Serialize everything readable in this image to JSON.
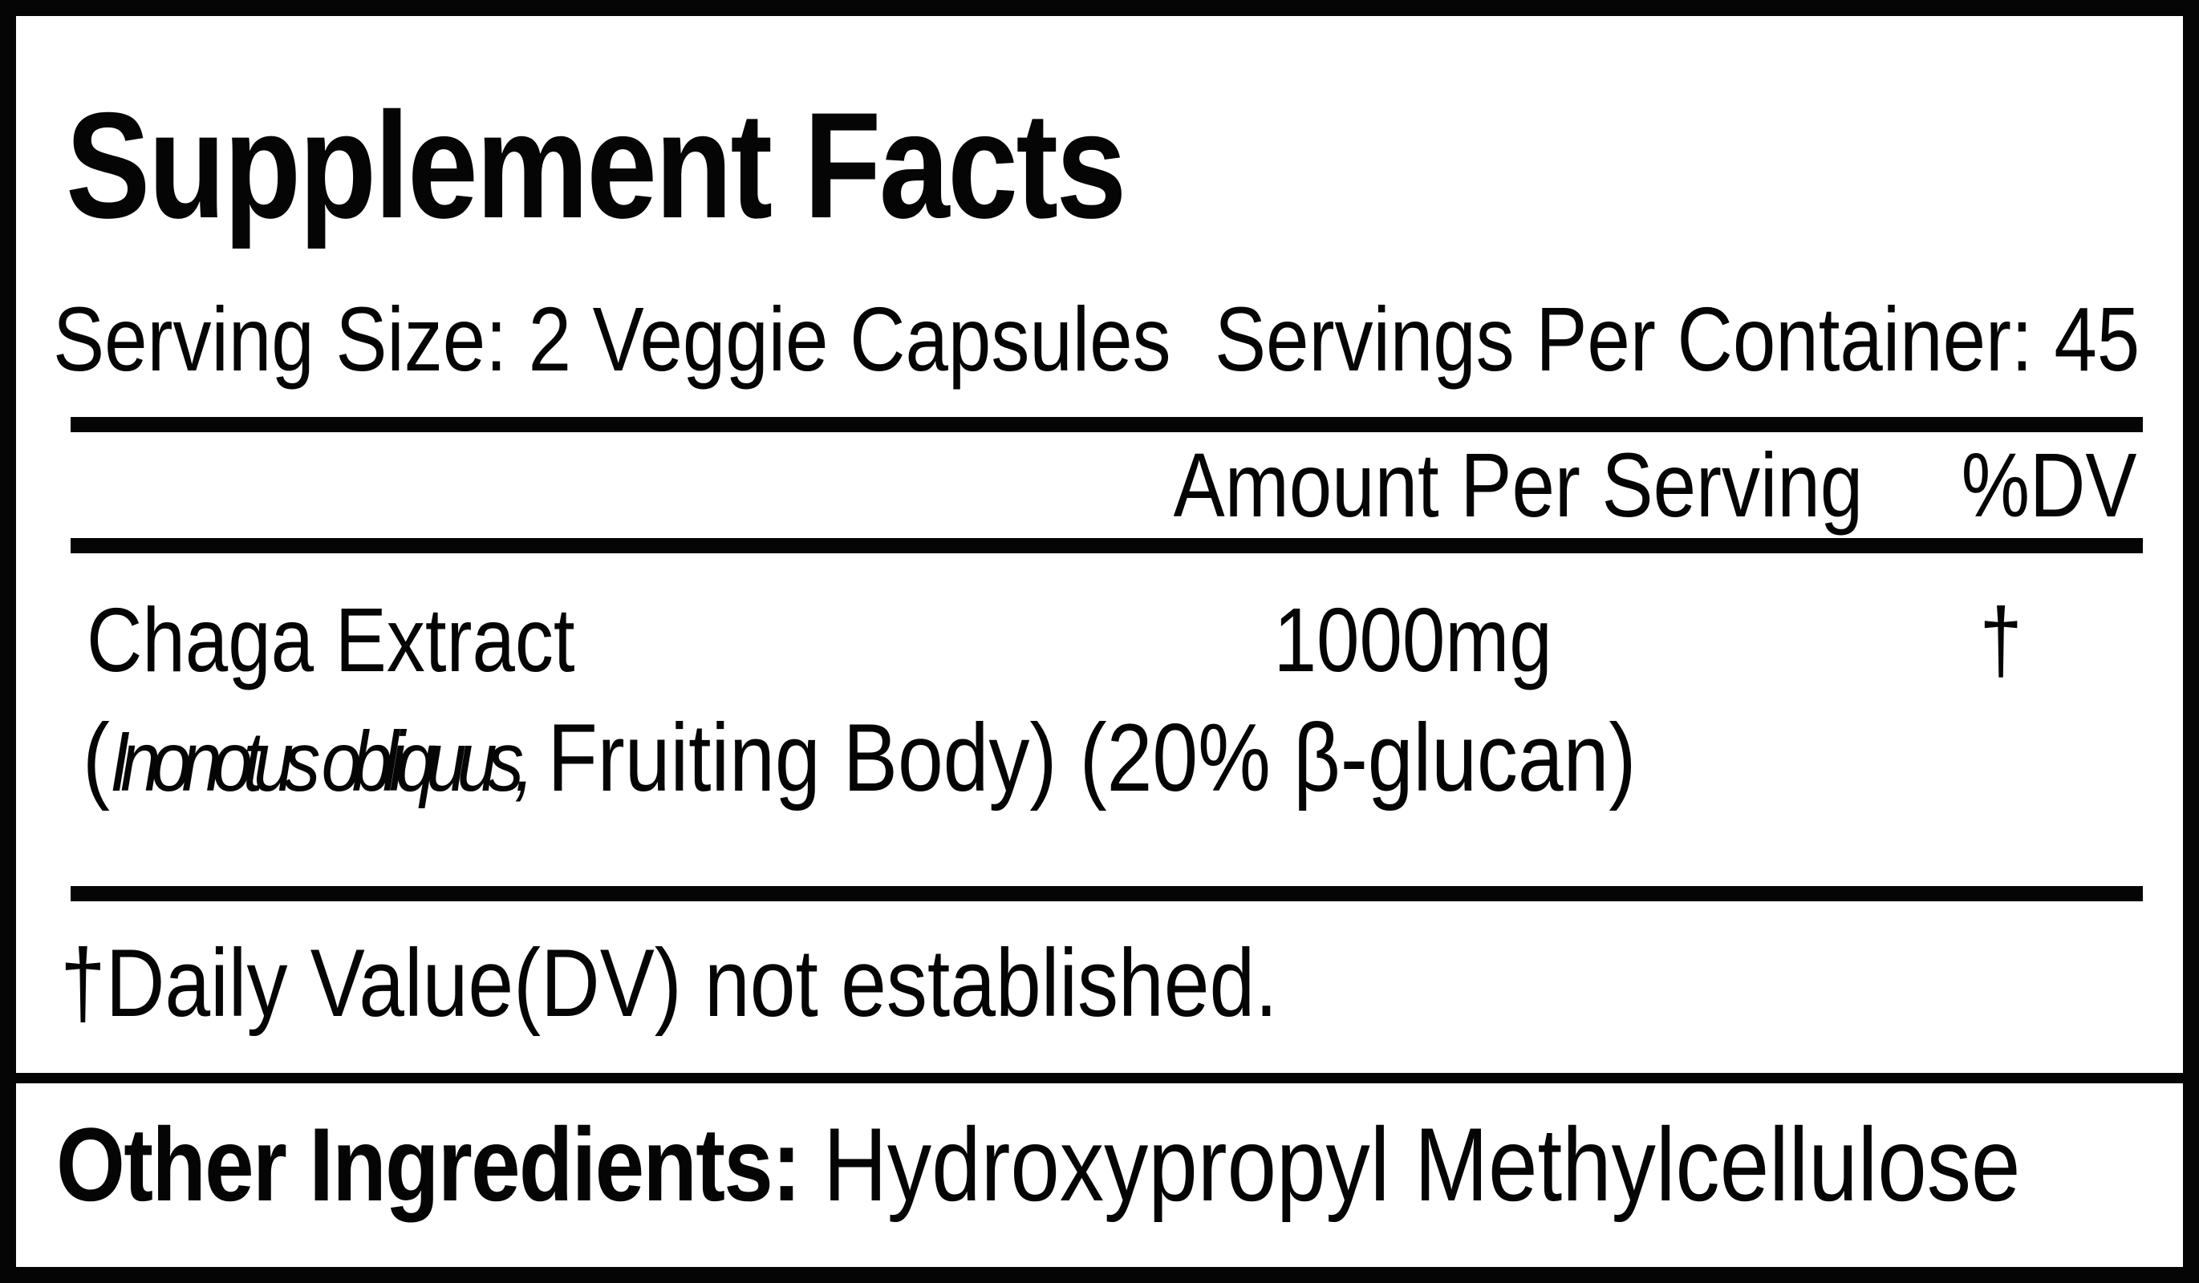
{
  "label": {
    "title": "Supplement Facts",
    "serving_size": "Serving Size: 2 Veggie Capsules",
    "servings_per_container": "Servings Per Container: 45",
    "columns": {
      "amount": "Amount Per Serving",
      "dv": "%DV"
    },
    "ingredients": [
      {
        "name": "Chaga Extract",
        "detail_prefix": "(",
        "detail_italic": "Inonotus obliquus,",
        "detail_rest": " Fruiting Body) (20% β-glucan)",
        "amount": "1000mg",
        "dv": "†"
      }
    ],
    "footnote": "†Daily Value(DV) not established.",
    "other_ingredients_label": "Other Ingredients:",
    "other_ingredients_value": "Hydroxypropyl Methylcellulose",
    "colors": {
      "ink": "#050505",
      "background": "#ffffff"
    }
  }
}
